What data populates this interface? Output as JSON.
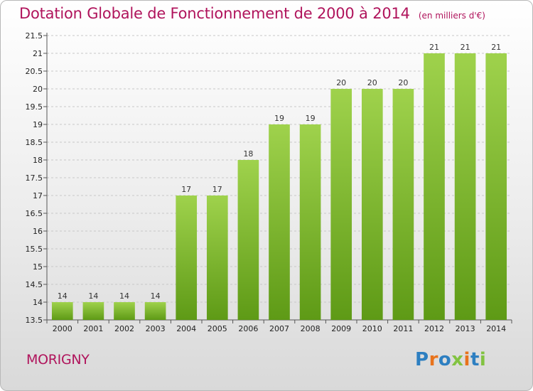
{
  "header": {
    "title": "Dotation Globale de Fonctionnement de 2000 à 2014",
    "unit": "(en milliers d'€)"
  },
  "footer": {
    "city": "MORIGNY",
    "logo": "Proxiti",
    "logo_colors": [
      "#2d7fc1",
      "#e8731c",
      "#2d7fc1",
      "#82c341",
      "#e8731c",
      "#2d7fc1",
      "#82c341"
    ]
  },
  "chart_data": {
    "type": "bar",
    "title": "Dotation Globale de Fonctionnement de 2000 à 2014",
    "subtitle": "(en milliers d'€)",
    "xlabel": "",
    "ylabel": "",
    "categories": [
      "2000",
      "2001",
      "2002",
      "2003",
      "2004",
      "2005",
      "2006",
      "2007",
      "2008",
      "2009",
      "2010",
      "2011",
      "2012",
      "2013",
      "2014"
    ],
    "values": [
      14,
      14,
      14,
      14,
      17,
      17,
      18,
      19,
      19,
      20,
      20,
      20,
      21,
      21,
      21
    ],
    "data_labels": [
      "14",
      "14",
      "14",
      "14",
      "17",
      "17",
      "18",
      "19",
      "19",
      "20",
      "20",
      "20",
      "21",
      "21",
      "21"
    ],
    "ylim": [
      13.5,
      21.5
    ],
    "yticks": [
      "13.5",
      "14",
      "14.5",
      "15",
      "15.5",
      "16",
      "16.5",
      "17",
      "17.5",
      "18",
      "18.5",
      "19",
      "19.5",
      "20",
      "20.5",
      "21",
      "21.5"
    ],
    "grid": true,
    "legend": "none",
    "bar_color_top": "#9fd24c",
    "bar_color_bottom": "#5e9a16"
  }
}
